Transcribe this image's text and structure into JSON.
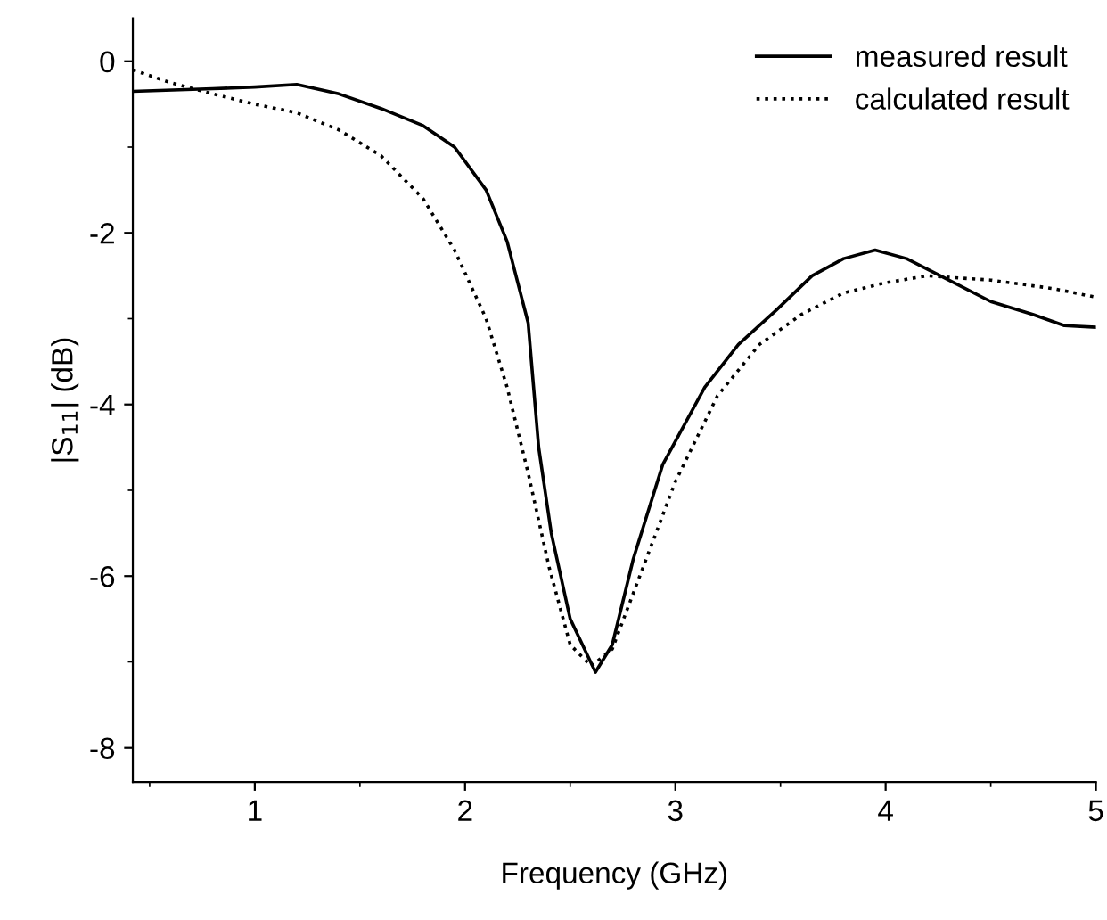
{
  "chart_data": {
    "type": "line",
    "xlabel": "Frequency (GHz)",
    "ylabel": "|S$_{11}$| (dB)",
    "xlim": [
      0.42,
      5
    ],
    "ylim": [
      -8.4,
      0.5
    ],
    "xticks": [
      1,
      2,
      3,
      4,
      5
    ],
    "yticks": [
      -8,
      -6,
      -4,
      -2,
      0
    ],
    "grid": false,
    "legend": "top right",
    "series": [
      {
        "name": "measured result",
        "color": "#000000",
        "line_style": "solid",
        "x": [
          0.42,
          0.8,
          1.0,
          1.2,
          1.4,
          1.6,
          1.8,
          1.95,
          2.1,
          2.2,
          2.3,
          2.35,
          2.41,
          2.5,
          2.62,
          2.7,
          2.8,
          2.94,
          3.14,
          3.3,
          3.48,
          3.65,
          3.8,
          3.95,
          4.1,
          4.3,
          4.5,
          4.7,
          4.85,
          5.0
        ],
        "values": [
          -0.35,
          -0.32,
          -0.3,
          -0.27,
          -0.38,
          -0.55,
          -0.75,
          -1.0,
          -1.5,
          -2.1,
          -3.05,
          -4.5,
          -5.5,
          -6.5,
          -7.12,
          -6.8,
          -5.8,
          -4.7,
          -3.8,
          -3.3,
          -2.9,
          -2.5,
          -2.3,
          -2.2,
          -2.3,
          -2.55,
          -2.8,
          -2.95,
          -3.08,
          -3.1
        ]
      },
      {
        "name": "calculated result",
        "color": "#000000",
        "line_style": "dotted",
        "x": [
          0.42,
          0.6,
          0.8,
          1.0,
          1.2,
          1.4,
          1.6,
          1.8,
          1.95,
          2.1,
          2.2,
          2.3,
          2.4,
          2.5,
          2.6,
          2.7,
          2.8,
          3.0,
          3.2,
          3.4,
          3.6,
          3.8,
          4.0,
          4.2,
          4.5,
          4.8,
          5.0
        ],
        "values": [
          -0.1,
          -0.25,
          -0.38,
          -0.5,
          -0.6,
          -0.8,
          -1.1,
          -1.6,
          -2.2,
          -3.0,
          -3.8,
          -4.8,
          -5.9,
          -6.8,
          -7.05,
          -6.85,
          -6.2,
          -4.9,
          -3.9,
          -3.3,
          -2.95,
          -2.7,
          -2.58,
          -2.5,
          -2.55,
          -2.65,
          -2.75
        ]
      }
    ]
  }
}
